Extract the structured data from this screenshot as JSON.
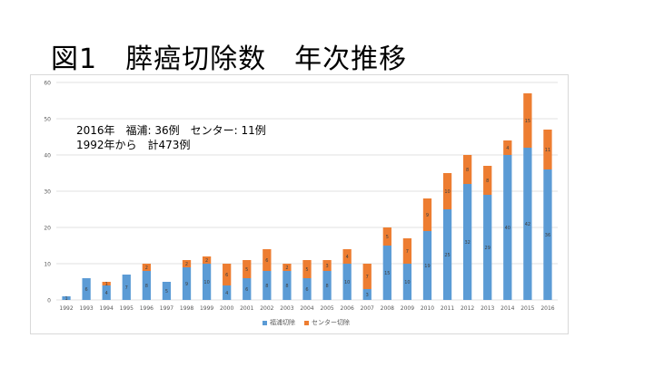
{
  "slide": {
    "title": "図1　膵癌切除数　年次推移"
  },
  "notes": {
    "line1": "2016年　福浦: 36例　センター: 11例",
    "line2": "1992年から　計473例"
  },
  "colors": {
    "fukuura": "#5b9bd5",
    "center": "#ed7d31",
    "grid": "#d9d9d9",
    "axis_text": "#595959"
  },
  "chart_data": {
    "type": "bar",
    "stacked": true,
    "categories": [
      "1992",
      "1993",
      "1994",
      "1995",
      "1996",
      "1997",
      "1998",
      "1999",
      "2000",
      "2001",
      "2002",
      "2003",
      "2004",
      "2005",
      "2006",
      "2007",
      "2008",
      "2009",
      "2010",
      "2011",
      "2012",
      "2013",
      "2014",
      "2015",
      "2016"
    ],
    "series": [
      {
        "name": "福浦切除",
        "color": "#5b9bd5",
        "values": [
          1,
          6,
          4,
          7,
          8,
          5,
          9,
          10,
          4,
          6,
          8,
          8,
          6,
          8,
          10,
          3,
          15,
          10,
          19,
          25,
          32,
          29,
          40,
          42,
          36
        ]
      },
      {
        "name": "センター切除",
        "color": "#ed7d31",
        "values": [
          0,
          0,
          1,
          0,
          2,
          0,
          2,
          2,
          6,
          5,
          6,
          2,
          5,
          3,
          4,
          7,
          5,
          7,
          9,
          10,
          8,
          8,
          4,
          15,
          11
        ]
      }
    ],
    "ylim": [
      0,
      60
    ],
    "yticks": [
      0,
      10,
      20,
      30,
      40,
      50,
      60
    ],
    "grid": true,
    "legend": "bottom"
  }
}
